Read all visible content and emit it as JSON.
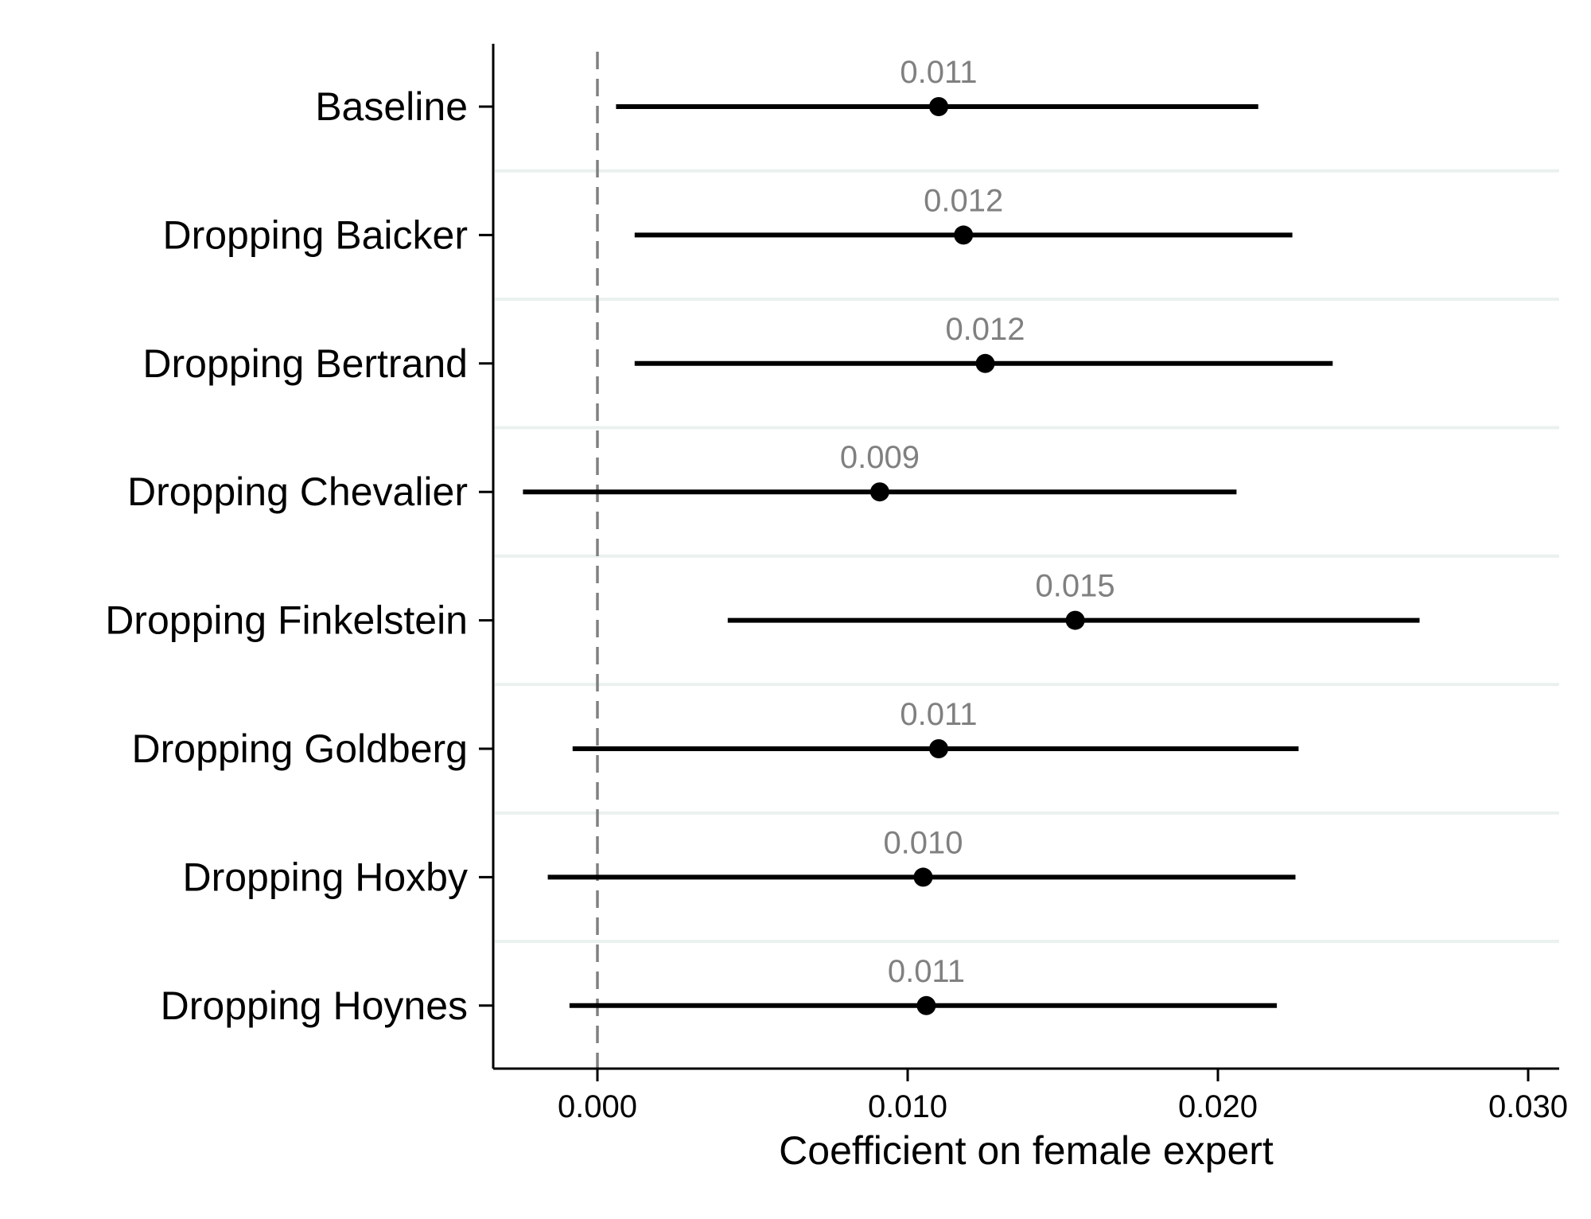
{
  "chart_data": {
    "type": "coefficient-plot",
    "xlabel": "Coefficient on female expert",
    "xlim": [
      -0.0033,
      0.0307
    ],
    "xticks": [
      0.0,
      0.01,
      0.02,
      0.03
    ],
    "xtick_labels": [
      "0.000",
      "0.010",
      "0.020",
      "0.030"
    ],
    "reference_line": 0.0,
    "grid": "horizontal-between-rows",
    "categories": [
      "Baseline",
      "Dropping Baicker",
      "Dropping Bertrand",
      "Dropping Chevalier",
      "Dropping Finkelstein",
      "Dropping Goldberg",
      "Dropping Hoxby",
      "Dropping Hoynes"
    ],
    "estimates": [
      0.011,
      0.0118,
      0.0125,
      0.0091,
      0.0154,
      0.011,
      0.0105,
      0.0106
    ],
    "ci_low": [
      0.0006,
      0.0012,
      0.0012,
      -0.0024,
      0.0042,
      -0.0008,
      -0.0016,
      -0.0009
    ],
    "ci_high": [
      0.0213,
      0.0224,
      0.0237,
      0.0206,
      0.0265,
      0.0226,
      0.0225,
      0.0219
    ],
    "value_labels": [
      "0.011",
      "0.012",
      "0.012",
      "0.009",
      "0.015",
      "0.011",
      "0.010",
      "0.011"
    ],
    "colors": {
      "marker": "#000000",
      "ci_line": "#000000",
      "value_label": "#808080",
      "reference_line": "#808080",
      "grid": "#eaf1ef",
      "axis": "#000000"
    }
  }
}
